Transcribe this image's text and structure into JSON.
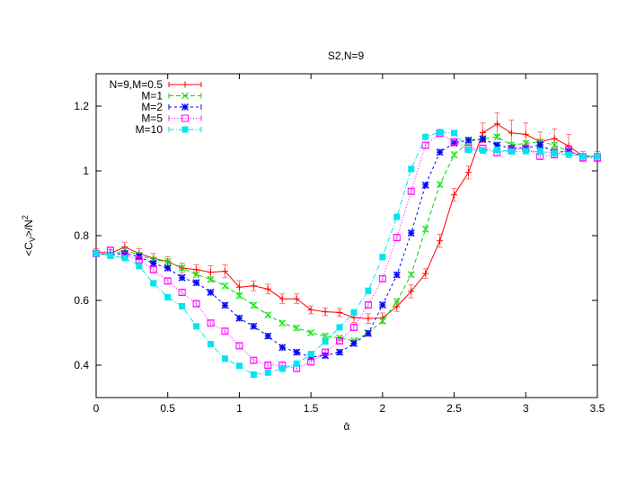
{
  "chart_data": {
    "type": "line",
    "title": "S2,N=9",
    "xlabel": "ᾱ",
    "ylabel": "<C_V>/N^2",
    "xlim": [
      0,
      3.5
    ],
    "ylim": [
      0.3,
      1.3
    ],
    "xticks": [
      0,
      0.5,
      1,
      1.5,
      2,
      2.5,
      3,
      3.5
    ],
    "xtick_labels": [
      "0",
      "0.5",
      "1",
      "1.5",
      "2",
      "2.5",
      "3",
      "3.5"
    ],
    "yticks": [
      0.4,
      0.6,
      0.8,
      1.0,
      1.2
    ],
    "ytick_labels": [
      "0.4",
      "0.6",
      "0.8",
      "1",
      "1.2"
    ],
    "grid": false,
    "legend_position": "top-left",
    "x": [
      0,
      0.1,
      0.2,
      0.3,
      0.4,
      0.5,
      0.6,
      0.7,
      0.8,
      0.9,
      1.0,
      1.1,
      1.2,
      1.3,
      1.4,
      1.5,
      1.6,
      1.7,
      1.8,
      1.9,
      2.0,
      2.1,
      2.2,
      2.3,
      2.4,
      2.5,
      2.6,
      2.7,
      2.8,
      2.9,
      3.0,
      3.1,
      3.2,
      3.3,
      3.4,
      3.5
    ],
    "series": [
      {
        "name": "N=9,M=0.5",
        "color": "#ff0000",
        "marker": "plus",
        "dash": "",
        "values": [
          0.75,
          0.745,
          0.765,
          0.745,
          0.73,
          0.72,
          0.7,
          0.695,
          0.687,
          0.69,
          0.641,
          0.645,
          0.635,
          0.605,
          0.605,
          0.571,
          0.565,
          0.563,
          0.547,
          0.544,
          0.546,
          0.581,
          0.628,
          0.683,
          0.784,
          0.926,
          0.995,
          1.118,
          1.145,
          1.117,
          1.113,
          1.09,
          1.1,
          1.077,
          1.045,
          1.045
        ],
        "errors": [
          0.01,
          0.012,
          0.015,
          0.015,
          0.015,
          0.015,
          0.015,
          0.015,
          0.02,
          0.02,
          0.02,
          0.015,
          0.015,
          0.015,
          0.015,
          0.012,
          0.012,
          0.012,
          0.015,
          0.015,
          0.015,
          0.015,
          0.02,
          0.015,
          0.02,
          0.02,
          0.02,
          0.03,
          0.035,
          0.04,
          0.035,
          0.03,
          0.03,
          0.035,
          0.015,
          0.015
        ]
      },
      {
        "name": "M=1",
        "color": "#00dd00",
        "marker": "x",
        "dash": "5,3",
        "values": [
          0.745,
          0.74,
          0.755,
          0.74,
          0.725,
          0.72,
          0.7,
          0.68,
          0.665,
          0.645,
          0.615,
          0.585,
          0.555,
          0.53,
          0.515,
          0.5,
          0.49,
          0.484,
          0.475,
          0.5,
          0.536,
          0.597,
          0.68,
          0.82,
          0.958,
          1.05,
          1.09,
          1.1,
          1.105,
          1.08,
          1.085,
          1.09,
          1.08,
          1.06,
          1.045,
          1.045
        ],
        "errors": [
          0.008,
          0.008,
          0.008,
          0.008,
          0.008,
          0.008,
          0.008,
          0.008,
          0.008,
          0.008,
          0.008,
          0.008,
          0.008,
          0.008,
          0.008,
          0.008,
          0.008,
          0.008,
          0.008,
          0.008,
          0.008,
          0.008,
          0.008,
          0.008,
          0.008,
          0.008,
          0.008,
          0.008,
          0.008,
          0.008,
          0.008,
          0.008,
          0.008,
          0.008,
          0.008,
          0.008
        ]
      },
      {
        "name": "M=2",
        "color": "#0000ff",
        "marker": "star",
        "dash": "3,3",
        "values": [
          0.745,
          0.74,
          0.745,
          0.735,
          0.714,
          0.7,
          0.67,
          0.655,
          0.625,
          0.585,
          0.545,
          0.52,
          0.49,
          0.455,
          0.44,
          0.425,
          0.43,
          0.44,
          0.467,
          0.498,
          0.586,
          0.679,
          0.808,
          0.956,
          1.058,
          1.086,
          1.095,
          1.098,
          1.08,
          1.07,
          1.07,
          1.08,
          1.058,
          1.06,
          1.045,
          1.045
        ],
        "errors": [
          0.008,
          0.008,
          0.008,
          0.008,
          0.008,
          0.008,
          0.008,
          0.008,
          0.008,
          0.008,
          0.008,
          0.008,
          0.008,
          0.008,
          0.008,
          0.008,
          0.008,
          0.008,
          0.008,
          0.008,
          0.008,
          0.008,
          0.008,
          0.008,
          0.008,
          0.008,
          0.008,
          0.008,
          0.008,
          0.008,
          0.008,
          0.008,
          0.008,
          0.008,
          0.008,
          0.008
        ]
      },
      {
        "name": "M=5",
        "color": "#ff00ff",
        "marker": "open-square",
        "dash": "1,2",
        "values": [
          0.745,
          0.755,
          0.74,
          0.725,
          0.695,
          0.66,
          0.625,
          0.59,
          0.53,
          0.505,
          0.46,
          0.415,
          0.4,
          0.4,
          0.39,
          0.41,
          0.44,
          0.475,
          0.517,
          0.586,
          0.667,
          0.794,
          0.937,
          1.079,
          1.116,
          1.09,
          1.07,
          1.07,
          1.056,
          1.065,
          1.07,
          1.045,
          1.05,
          1.065,
          1.04,
          1.04
        ],
        "errors": [
          0.008,
          0.008,
          0.008,
          0.008,
          0.008,
          0.008,
          0.008,
          0.008,
          0.008,
          0.008,
          0.008,
          0.008,
          0.008,
          0.008,
          0.008,
          0.008,
          0.008,
          0.008,
          0.008,
          0.008,
          0.008,
          0.008,
          0.008,
          0.008,
          0.008,
          0.008,
          0.008,
          0.008,
          0.008,
          0.008,
          0.008,
          0.008,
          0.008,
          0.008,
          0.008,
          0.008
        ]
      },
      {
        "name": "M=10",
        "color": "#00e5ee",
        "marker": "filled-square",
        "dash": "6,2,1,2",
        "values": [
          0.745,
          0.738,
          0.731,
          0.706,
          0.653,
          0.61,
          0.582,
          0.52,
          0.465,
          0.42,
          0.398,
          0.371,
          0.377,
          0.389,
          0.405,
          0.434,
          0.473,
          0.517,
          0.563,
          0.63,
          0.734,
          0.858,
          1.006,
          1.105,
          1.12,
          1.117,
          1.065,
          1.063,
          1.065,
          1.06,
          1.061,
          1.06,
          1.055,
          1.05,
          1.045,
          1.045
        ],
        "errors": [
          0.008,
          0.008,
          0.008,
          0.008,
          0.008,
          0.008,
          0.008,
          0.008,
          0.008,
          0.008,
          0.008,
          0.008,
          0.008,
          0.008,
          0.008,
          0.008,
          0.008,
          0.008,
          0.008,
          0.008,
          0.008,
          0.008,
          0.008,
          0.008,
          0.008,
          0.008,
          0.008,
          0.008,
          0.008,
          0.008,
          0.008,
          0.008,
          0.008,
          0.008,
          0.008,
          0.008
        ]
      }
    ]
  }
}
